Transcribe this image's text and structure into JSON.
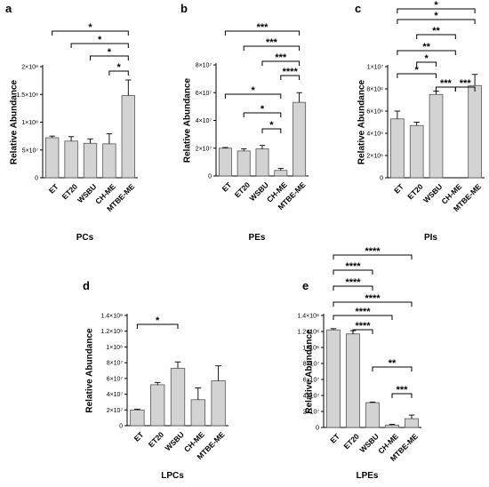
{
  "figure": {
    "colors": {
      "bar_fill": "#d3d3d3",
      "bar_stroke": "#555555",
      "line": "#000000"
    }
  },
  "chart_data": [
    {
      "id": "a",
      "type": "bar",
      "panel_letter": "a",
      "title": "PCs",
      "ylabel": "Relative Abundance",
      "categories": [
        "ET",
        "ET20",
        "WSBU",
        "CH-ME",
        "MTBE-ME"
      ],
      "values": [
        72000000,
        66000000,
        62000000,
        61000000,
        148000000
      ],
      "errors": [
        3000000,
        8000000,
        8000000,
        18000000,
        28000000
      ],
      "ylim": [
        0,
        200000000
      ],
      "ytick_labels": [
        "0",
        "5×10⁷",
        "1×10⁸",
        "1.5×10⁸",
        "2×10⁸"
      ],
      "significance": [
        {
          "from": 0,
          "to": 4,
          "label": "*"
        },
        {
          "from": 1,
          "to": 4,
          "label": "*"
        },
        {
          "from": 2,
          "to": 4,
          "label": "*"
        },
        {
          "from": 3,
          "to": 4,
          "label": "*"
        }
      ]
    },
    {
      "id": "b",
      "type": "bar",
      "panel_letter": "b",
      "title": "PEs",
      "ylabel": "Relative Abundance",
      "categories": [
        "ET",
        "ET20",
        "WSBU",
        "CH-ME",
        "MTBE-ME"
      ],
      "values": [
        20000000,
        18000000,
        19500000,
        4000000,
        53000000
      ],
      "errors": [
        500000,
        1500000,
        2500000,
        1500000,
        7000000
      ],
      "ylim": [
        0,
        80000000
      ],
      "ytick_labels": [
        "0",
        "2×10⁷",
        "4×10⁷",
        "6×10⁷",
        "8×10⁷"
      ],
      "significance": [
        {
          "from": 0,
          "to": 3,
          "label": "*"
        },
        {
          "from": 1,
          "to": 3,
          "label": "*"
        },
        {
          "from": 2,
          "to": 3,
          "label": "*"
        },
        {
          "from": 0,
          "to": 4,
          "label": "***"
        },
        {
          "from": 1,
          "to": 4,
          "label": "***"
        },
        {
          "from": 2,
          "to": 4,
          "label": "***"
        },
        {
          "from": 3,
          "to": 4,
          "label": "****"
        }
      ]
    },
    {
      "id": "c",
      "type": "bar",
      "panel_letter": "c",
      "title": "PIs",
      "ylabel": "Relative Abundance",
      "categories": [
        "ET",
        "ET20",
        "WSBU",
        "CH-ME",
        "MTBE-ME"
      ],
      "values": [
        5300000,
        4700000,
        7500000,
        0,
        8300000
      ],
      "errors": [
        700000,
        300000,
        300000,
        0,
        1000000
      ],
      "ylim": [
        0,
        10000000
      ],
      "ytick_labels": [
        "0",
        "2×10⁶",
        "4×10⁶",
        "6×10⁶",
        "8×10⁶",
        "1×10⁷"
      ],
      "significance": [
        {
          "from": 0,
          "to": 2,
          "label": "*"
        },
        {
          "from": 1,
          "to": 2,
          "label": "*"
        },
        {
          "from": 2,
          "to": 3,
          "label": "***"
        },
        {
          "from": 3,
          "to": 4,
          "label": "***"
        },
        {
          "from": 0,
          "to": 3,
          "label": "**"
        },
        {
          "from": 1,
          "to": 3,
          "label": "**"
        },
        {
          "from": 0,
          "to": 4,
          "label": "*"
        },
        {
          "from": 0,
          "to": 4,
          "label": "*"
        }
      ]
    },
    {
      "id": "d",
      "type": "bar",
      "panel_letter": "d",
      "title": "LPCs",
      "ylabel": "Relative Abundance",
      "categories": [
        "ET",
        "ET20",
        "WSBU",
        "CH-ME",
        "MTBE-ME"
      ],
      "values": [
        20000000,
        52000000,
        73000000,
        33000000,
        57000000
      ],
      "errors": [
        1000000,
        3000000,
        8000000,
        15000000,
        19000000
      ],
      "ylim": [
        0,
        140000000
      ],
      "ytick_labels": [
        "0",
        "2×10⁷",
        "4×10⁷",
        "6×10⁷",
        "8×10⁷",
        "1×10⁸",
        "1.2×10⁸",
        "1.4×10⁸"
      ],
      "significance": [
        {
          "from": 0,
          "to": 2,
          "label": "*"
        }
      ]
    },
    {
      "id": "e",
      "type": "bar",
      "panel_letter": "e",
      "title": "LPEs",
      "ylabel": "Relative Abundance",
      "categories": [
        "ET",
        "ET20",
        "WSBU",
        "CH-ME",
        "MTBE-ME"
      ],
      "values": [
        122000000,
        117000000,
        31000000,
        3000000,
        11000000
      ],
      "errors": [
        1500000,
        4000000,
        800000,
        1000000,
        4500000
      ],
      "ylim": [
        0,
        140000000
      ],
      "ytick_labels": [
        "0",
        "2×10⁷",
        "4×10⁷",
        "6×10⁷",
        "8×10⁷",
        "1×10⁸",
        "1.2×10⁸",
        "1.4×10⁸"
      ],
      "significance": [
        {
          "from": 3,
          "to": 4,
          "label": "***"
        },
        {
          "from": 2,
          "to": 4,
          "label": "**"
        },
        {
          "from": 1,
          "to": 2,
          "label": "****"
        },
        {
          "from": 0,
          "to": 3,
          "label": "****"
        },
        {
          "from": 0,
          "to": 4,
          "label": "****"
        },
        {
          "from": 0,
          "to": 2,
          "label": "****"
        },
        {
          "from": 0,
          "to": 2,
          "label": "****"
        },
        {
          "from": 0,
          "to": 4,
          "label": "****"
        }
      ]
    }
  ]
}
